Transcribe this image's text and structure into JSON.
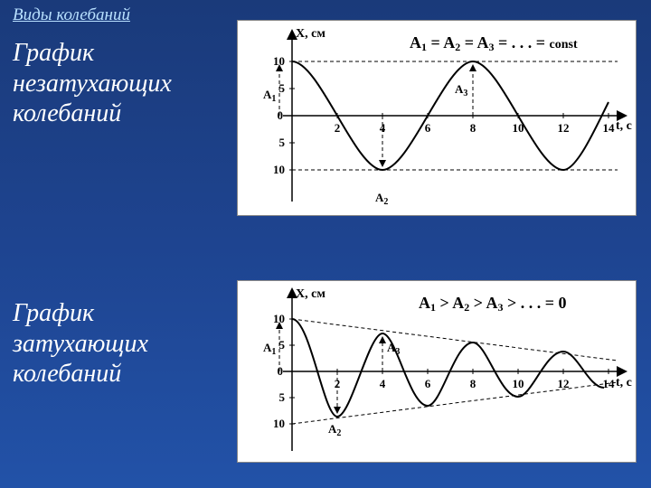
{
  "page_title": "Виды колебаний",
  "label_top": "График\nнезатухающих\nколебаний",
  "label_bottom": "График\nзатухающих\nколебаний",
  "colors": {
    "background_gradient_top": "#1a3a7a",
    "background_gradient_mid": "#1e4490",
    "background_gradient_bottom": "#2252a8",
    "title_color": "#b8e0ff",
    "text_color": "#ffffff",
    "panel_bg": "#ffffff",
    "line_color": "#000000"
  },
  "chart_top": {
    "type": "line",
    "y_axis_label": "X, см",
    "x_axis_label": "t, c",
    "equation": "A₁ = A₂ = A₃ = . . . = const",
    "ylim": [
      -10,
      10
    ],
    "xlim": [
      0,
      14
    ],
    "y_ticks_pos": [
      5,
      10
    ],
    "y_ticks_neg": [
      5,
      10
    ],
    "x_ticks": [
      2,
      4,
      6,
      8,
      10,
      12,
      14
    ],
    "dashed_guides_y": [
      10,
      -10
    ],
    "amplitude_markers": [
      "A₁",
      "A₂",
      "A₃"
    ],
    "curve_period": 8,
    "curve_amplitude": 10,
    "curve_phase_start_at_max": true
  },
  "chart_bottom": {
    "type": "line",
    "y_axis_label": "X, см",
    "x_axis_label": "t, c",
    "equation": "A₁ > A₂ > A₃ > . . . = 0",
    "ylim": [
      -10,
      10
    ],
    "xlim": [
      0,
      14
    ],
    "y_ticks_pos": [
      5,
      10
    ],
    "y_ticks_neg": [
      5,
      10
    ],
    "x_ticks": [
      2,
      4,
      6,
      8,
      10,
      12,
      14
    ],
    "envelope_start": 10,
    "envelope_end_approx": 2,
    "amplitude_markers": [
      "A₁",
      "A₂",
      "A₃"
    ],
    "curve_period": 4,
    "curve_decay_type": "exponential"
  }
}
